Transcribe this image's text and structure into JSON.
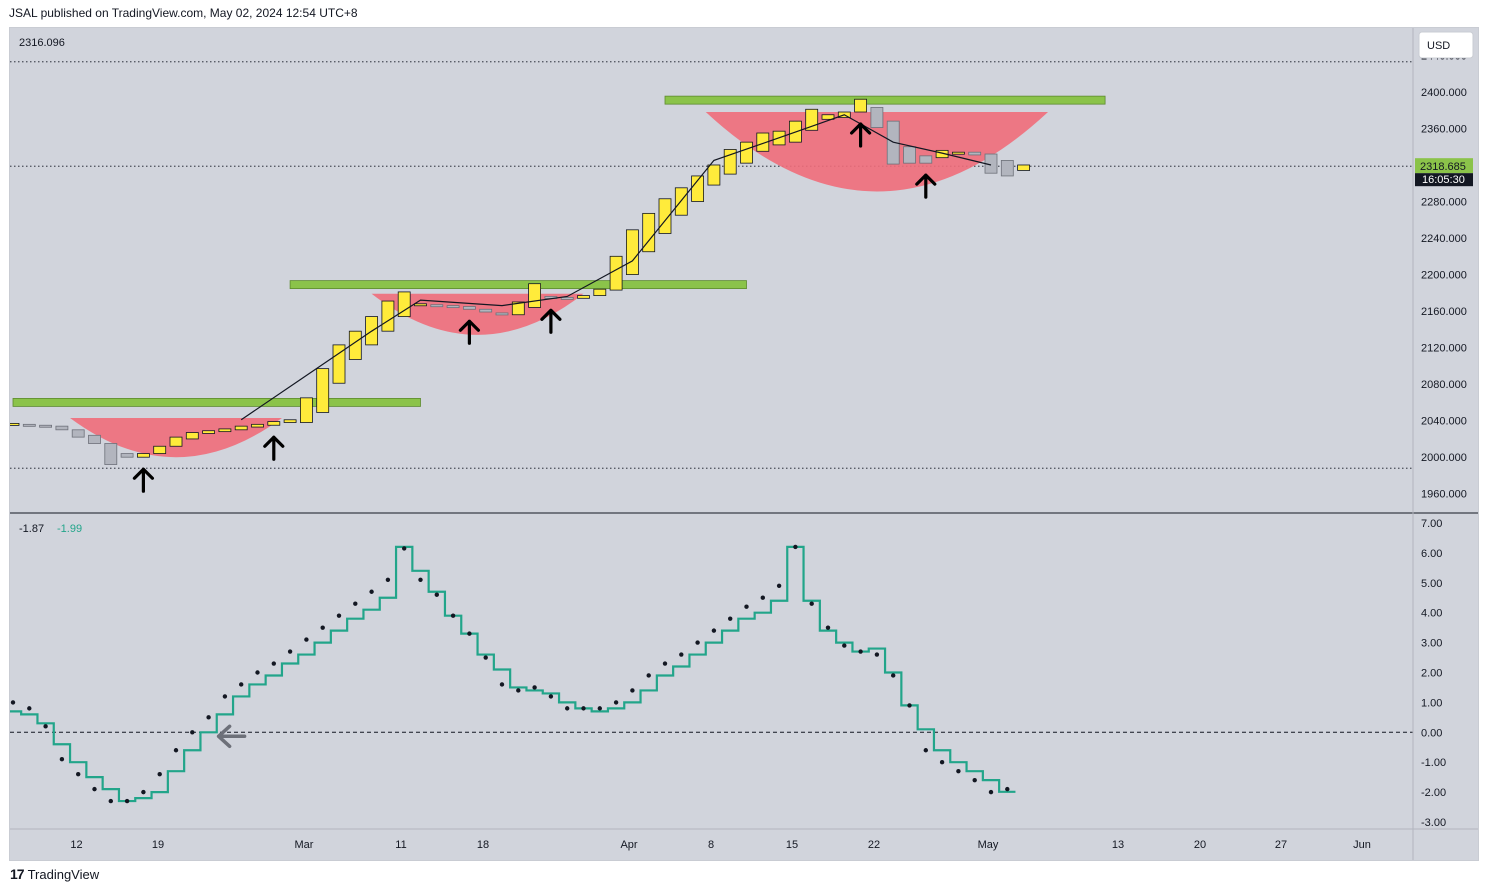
{
  "header": {
    "published": "JSAL published on TradingView.com, May 02, 2024 12:54 UTC+8"
  },
  "footer": {
    "brand": "TradingView"
  },
  "colors": {
    "panel_bg": "#d1d4dc",
    "bull": "#ffeb3b",
    "bear": "#b2b5be",
    "band": "#8bc34a",
    "cup": "#f06d7a",
    "osc": "#22a58a",
    "dots": "#131722",
    "last_price_bg": "#8bc34a"
  },
  "chart_data": [
    {
      "type": "candlestick",
      "pane": "price",
      "currency_button": "USD",
      "top_left_value": "2316.096",
      "ylim": [
        1940,
        2470
      ],
      "y_ticks": [
        "2440.000",
        "2400.000",
        "2360.000",
        "2320.000",
        "2280.000",
        "2240.000",
        "2200.000",
        "2160.000",
        "2120.000",
        "2080.000",
        "2040.000",
        "2000.000",
        "1960.000"
      ],
      "x_ticks": [
        "12",
        "19",
        "Mar",
        "11",
        "18",
        "Apr",
        "8",
        "15",
        "22",
        "May",
        "13",
        "20",
        "27",
        "Jun"
      ],
      "last_price": "2318.685",
      "countdown": "16:05:30",
      "dotted_levels": [
        2433,
        2318.685,
        1988
      ],
      "resistance_bands": [
        {
          "start": 0,
          "end": 25,
          "price": 2060
        },
        {
          "start": 17,
          "end": 45,
          "price": 2189
        },
        {
          "start": 40,
          "end": 67,
          "price": 2391
        }
      ],
      "cups": [
        {
          "center": 10,
          "half_width": 6.5,
          "top": 2043,
          "bottom": 2000
        },
        {
          "center": 28.5,
          "half_width": 6.5,
          "top": 2179,
          "bottom": 2134
        },
        {
          "center": 53,
          "half_width": 10.5,
          "top": 2378,
          "bottom": 2291
        }
      ],
      "arrows_up": [
        8,
        16,
        28,
        33,
        52,
        56
      ],
      "candles": [
        {
          "o": 2035,
          "c": 2037
        },
        {
          "o": 2036,
          "c": 2035
        },
        {
          "o": 2035,
          "c": 2034
        },
        {
          "o": 2034,
          "c": 2030
        },
        {
          "o": 2030,
          "c": 2022
        },
        {
          "o": 2024,
          "c": 2015
        },
        {
          "o": 2015,
          "c": 1992
        },
        {
          "o": 2004,
          "c": 2000
        },
        {
          "o": 2000,
          "c": 2004
        },
        {
          "o": 2004,
          "c": 2012
        },
        {
          "o": 2012,
          "c": 2022
        },
        {
          "o": 2020,
          "c": 2027
        },
        {
          "o": 2026,
          "c": 2029
        },
        {
          "o": 2028,
          "c": 2031
        },
        {
          "o": 2030,
          "c": 2034
        },
        {
          "o": 2033,
          "c": 2036
        },
        {
          "o": 2035,
          "c": 2039
        },
        {
          "o": 2038,
          "c": 2041
        },
        {
          "o": 2038,
          "c": 2065
        },
        {
          "o": 2049,
          "c": 2097
        },
        {
          "o": 2081,
          "c": 2123
        },
        {
          "o": 2107,
          "c": 2138
        },
        {
          "o": 2123,
          "c": 2154
        },
        {
          "o": 2138,
          "c": 2171
        },
        {
          "o": 2154,
          "c": 2181
        },
        {
          "o": 2166,
          "c": 2168
        },
        {
          "o": 2167,
          "c": 2165
        },
        {
          "o": 2166,
          "c": 2164
        },
        {
          "o": 2165,
          "c": 2162
        },
        {
          "o": 2162,
          "c": 2159
        },
        {
          "o": 2158,
          "c": 2156
        },
        {
          "o": 2156,
          "c": 2170
        },
        {
          "o": 2164,
          "c": 2190
        },
        {
          "o": 2176,
          "c": 2174
        },
        {
          "o": 2175,
          "c": 2173
        },
        {
          "o": 2174,
          "c": 2177
        },
        {
          "o": 2177,
          "c": 2184
        },
        {
          "o": 2183,
          "c": 2220
        },
        {
          "o": 2200,
          "c": 2249
        },
        {
          "o": 2225,
          "c": 2267
        },
        {
          "o": 2245,
          "c": 2283
        },
        {
          "o": 2265,
          "c": 2295
        },
        {
          "o": 2280,
          "c": 2308
        },
        {
          "o": 2298,
          "c": 2320
        },
        {
          "o": 2310,
          "c": 2337
        },
        {
          "o": 2322,
          "c": 2345
        },
        {
          "o": 2335,
          "c": 2355
        },
        {
          "o": 2342,
          "c": 2357
        },
        {
          "o": 2345,
          "c": 2368
        },
        {
          "o": 2358,
          "c": 2381
        },
        {
          "o": 2370,
          "c": 2375
        },
        {
          "o": 2372,
          "c": 2378
        },
        {
          "o": 2378,
          "c": 2392
        },
        {
          "o": 2383,
          "c": 2361
        },
        {
          "o": 2368,
          "c": 2321
        },
        {
          "o": 2340,
          "c": 2322
        },
        {
          "o": 2330,
          "c": 2322
        },
        {
          "o": 2328,
          "c": 2336
        },
        {
          "o": 2332,
          "c": 2334
        },
        {
          "o": 2334,
          "c": 2331
        },
        {
          "o": 2332,
          "c": 2311
        },
        {
          "o": 2325,
          "c": 2308
        },
        {
          "o": 2314,
          "c": 2320
        }
      ],
      "trend_line": [
        {
          "from": 14,
          "to": 2041
        },
        {
          "from": 22,
          "to": 2138
        },
        {
          "from": 25,
          "to": 2172
        },
        {
          "from": 30,
          "to": 2166
        },
        {
          "from": 34,
          "to": 2176
        },
        {
          "from": 38,
          "to": 2215
        },
        {
          "from": 43,
          "to": 2325
        },
        {
          "from": 48,
          "to": 2356
        },
        {
          "from": 51,
          "to": 2375
        },
        {
          "from": 54,
          "to": 2345
        },
        {
          "from": 57,
          "to": 2333
        },
        {
          "from": 60,
          "to": 2320
        }
      ]
    },
    {
      "type": "line",
      "pane": "oscillator",
      "legend": [
        "-1.87",
        "-1.99"
      ],
      "series_names": [
        "dots",
        "step line"
      ],
      "ylim": [
        -3.2,
        7.3
      ],
      "y_ticks": [
        "7.00",
        "6.00",
        "5.00",
        "4.00",
        "3.00",
        "2.00",
        "1.00",
        "0.00",
        "-1.00",
        "-2.00",
        "-3.00"
      ],
      "zero_line": 0,
      "dots_values": [
        1.0,
        0.8,
        0.2,
        -0.9,
        -1.4,
        -1.9,
        -2.3,
        -2.3,
        -2.0,
        -1.4,
        -0.6,
        0.0,
        0.5,
        1.2,
        1.6,
        2.0,
        2.3,
        2.7,
        3.1,
        3.5,
        3.9,
        4.3,
        4.7,
        5.1,
        6.15,
        5.1,
        4.6,
        3.9,
        3.3,
        2.5,
        1.6,
        1.4,
        1.5,
        1.2,
        0.8,
        0.8,
        0.8,
        1.0,
        1.4,
        1.9,
        2.3,
        2.6,
        3.0,
        3.4,
        3.8,
        4.2,
        4.5,
        4.9,
        6.2,
        4.3,
        3.5,
        2.9,
        2.7,
        2.6,
        1.9,
        0.9,
        -0.6,
        -1.0,
        -1.3,
        -1.6,
        -2.0,
        -1.9
      ],
      "step_values": [
        0.7,
        0.6,
        0.3,
        -0.4,
        -1.0,
        -1.5,
        -1.9,
        -2.3,
        -2.2,
        -2.0,
        -1.3,
        -0.6,
        0.0,
        0.6,
        1.2,
        1.6,
        1.9,
        2.3,
        2.6,
        3.0,
        3.4,
        3.8,
        4.1,
        4.5,
        6.2,
        5.4,
        4.7,
        3.9,
        3.3,
        2.6,
        2.1,
        1.5,
        1.4,
        1.3,
        1.0,
        0.8,
        0.7,
        0.8,
        1.0,
        1.4,
        1.9,
        2.2,
        2.6,
        3.0,
        3.4,
        3.8,
        4.0,
        4.4,
        6.2,
        4.4,
        3.4,
        3.0,
        2.7,
        2.8,
        2.0,
        0.9,
        0.1,
        -0.6,
        -1.0,
        -1.3,
        -1.6,
        -1.99
      ],
      "arrows_left": [
        12,
        62
      ]
    }
  ]
}
